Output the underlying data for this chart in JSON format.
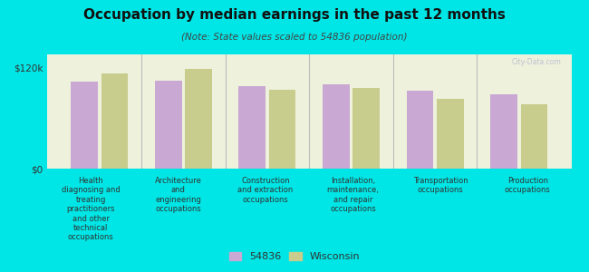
{
  "title": "Occupation by median earnings in the past 12 months",
  "subtitle": "(Note: State values scaled to 54836 population)",
  "categories": [
    "Health\ndiagnosing and\ntreating\npractitioners\nand other\ntechnical\noccupations",
    "Architecture\nand\nengineering\noccupations",
    "Construction\nand extraction\noccupations",
    "Installation,\nmaintenance,\nand repair\noccupations",
    "Transportation\noccupations",
    "Production\noccupations"
  ],
  "values_54836": [
    103000,
    104000,
    98000,
    100000,
    92000,
    88000
  ],
  "values_wisconsin": [
    112000,
    118000,
    93000,
    95000,
    82000,
    76000
  ],
  "color_54836": "#c9a8d4",
  "color_wisconsin": "#c8cc8c",
  "background_color": "#00e5e5",
  "plot_background": "#eef2dc",
  "ylabel_ticks": [
    "$0",
    "$120k"
  ],
  "ytick_values": [
    0,
    120000
  ],
  "legend_label_54836": "54836",
  "legend_label_wisconsin": "Wisconsin",
  "watermark": "City-Data.com",
  "ylim_max": 135000
}
